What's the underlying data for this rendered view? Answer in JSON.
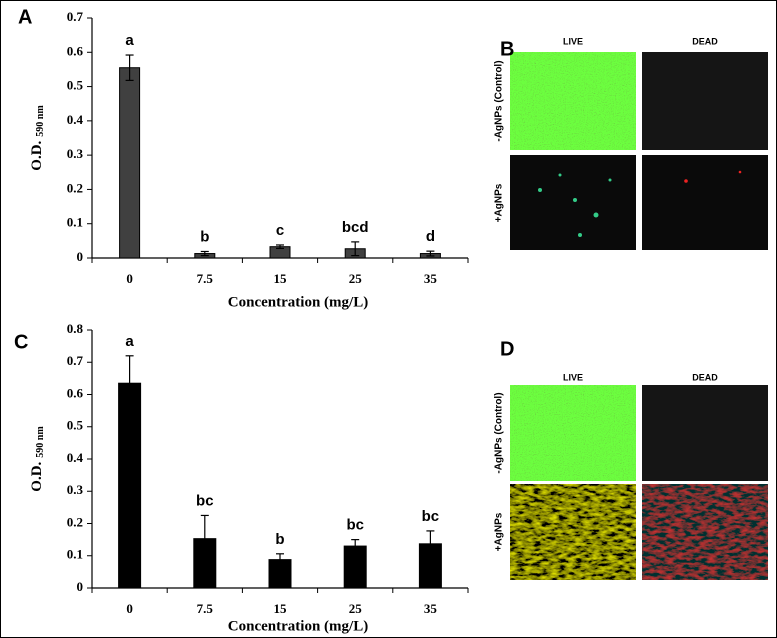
{
  "chart_data": [
    {
      "type": "bar",
      "panel": "A",
      "ylabel": "O.D.",
      "ylabel_sub": "590 nm",
      "xlabel": "Concentration (mg/L)",
      "categories": [
        "0",
        "7.5",
        "15",
        "25",
        "35"
      ],
      "values": [
        0.555,
        0.013,
        0.033,
        0.027,
        0.013
      ],
      "errors": [
        0.037,
        0.006,
        0.005,
        0.02,
        0.007
      ],
      "annotations": [
        "a",
        "b",
        "c",
        "bcd",
        "d"
      ],
      "color": "#404040",
      "ylim": [
        0,
        0.7
      ],
      "yticks": [
        0,
        0.1,
        0.2,
        0.3,
        0.4,
        0.5,
        0.6,
        0.7
      ]
    },
    {
      "type": "bar",
      "panel": "C",
      "ylabel": "O.D.",
      "ylabel_sub": "590 nm",
      "xlabel": "Concentration (mg/L)",
      "categories": [
        "0",
        "7.5",
        "15",
        "25",
        "35"
      ],
      "values": [
        0.635,
        0.153,
        0.088,
        0.13,
        0.137
      ],
      "errors": [
        0.085,
        0.072,
        0.018,
        0.02,
        0.04
      ],
      "annotations": [
        "a",
        "bc",
        "b",
        "bc",
        "bc"
      ],
      "color": "#000000",
      "ylim": [
        0,
        0.8
      ],
      "yticks": [
        0,
        0.1,
        0.2,
        0.3,
        0.4,
        0.5,
        0.6,
        0.7,
        0.8
      ]
    }
  ],
  "panels": [
    {
      "letter": "B",
      "columns": [
        "LIVE",
        "DEAD"
      ],
      "rows": [
        "-AgNPs (Control)",
        "+AgNPs"
      ]
    },
    {
      "letter": "D",
      "columns": [
        "LIVE",
        "DEAD"
      ],
      "rows": [
        "-AgNPs (Control)",
        "+AgNPs"
      ]
    }
  ]
}
